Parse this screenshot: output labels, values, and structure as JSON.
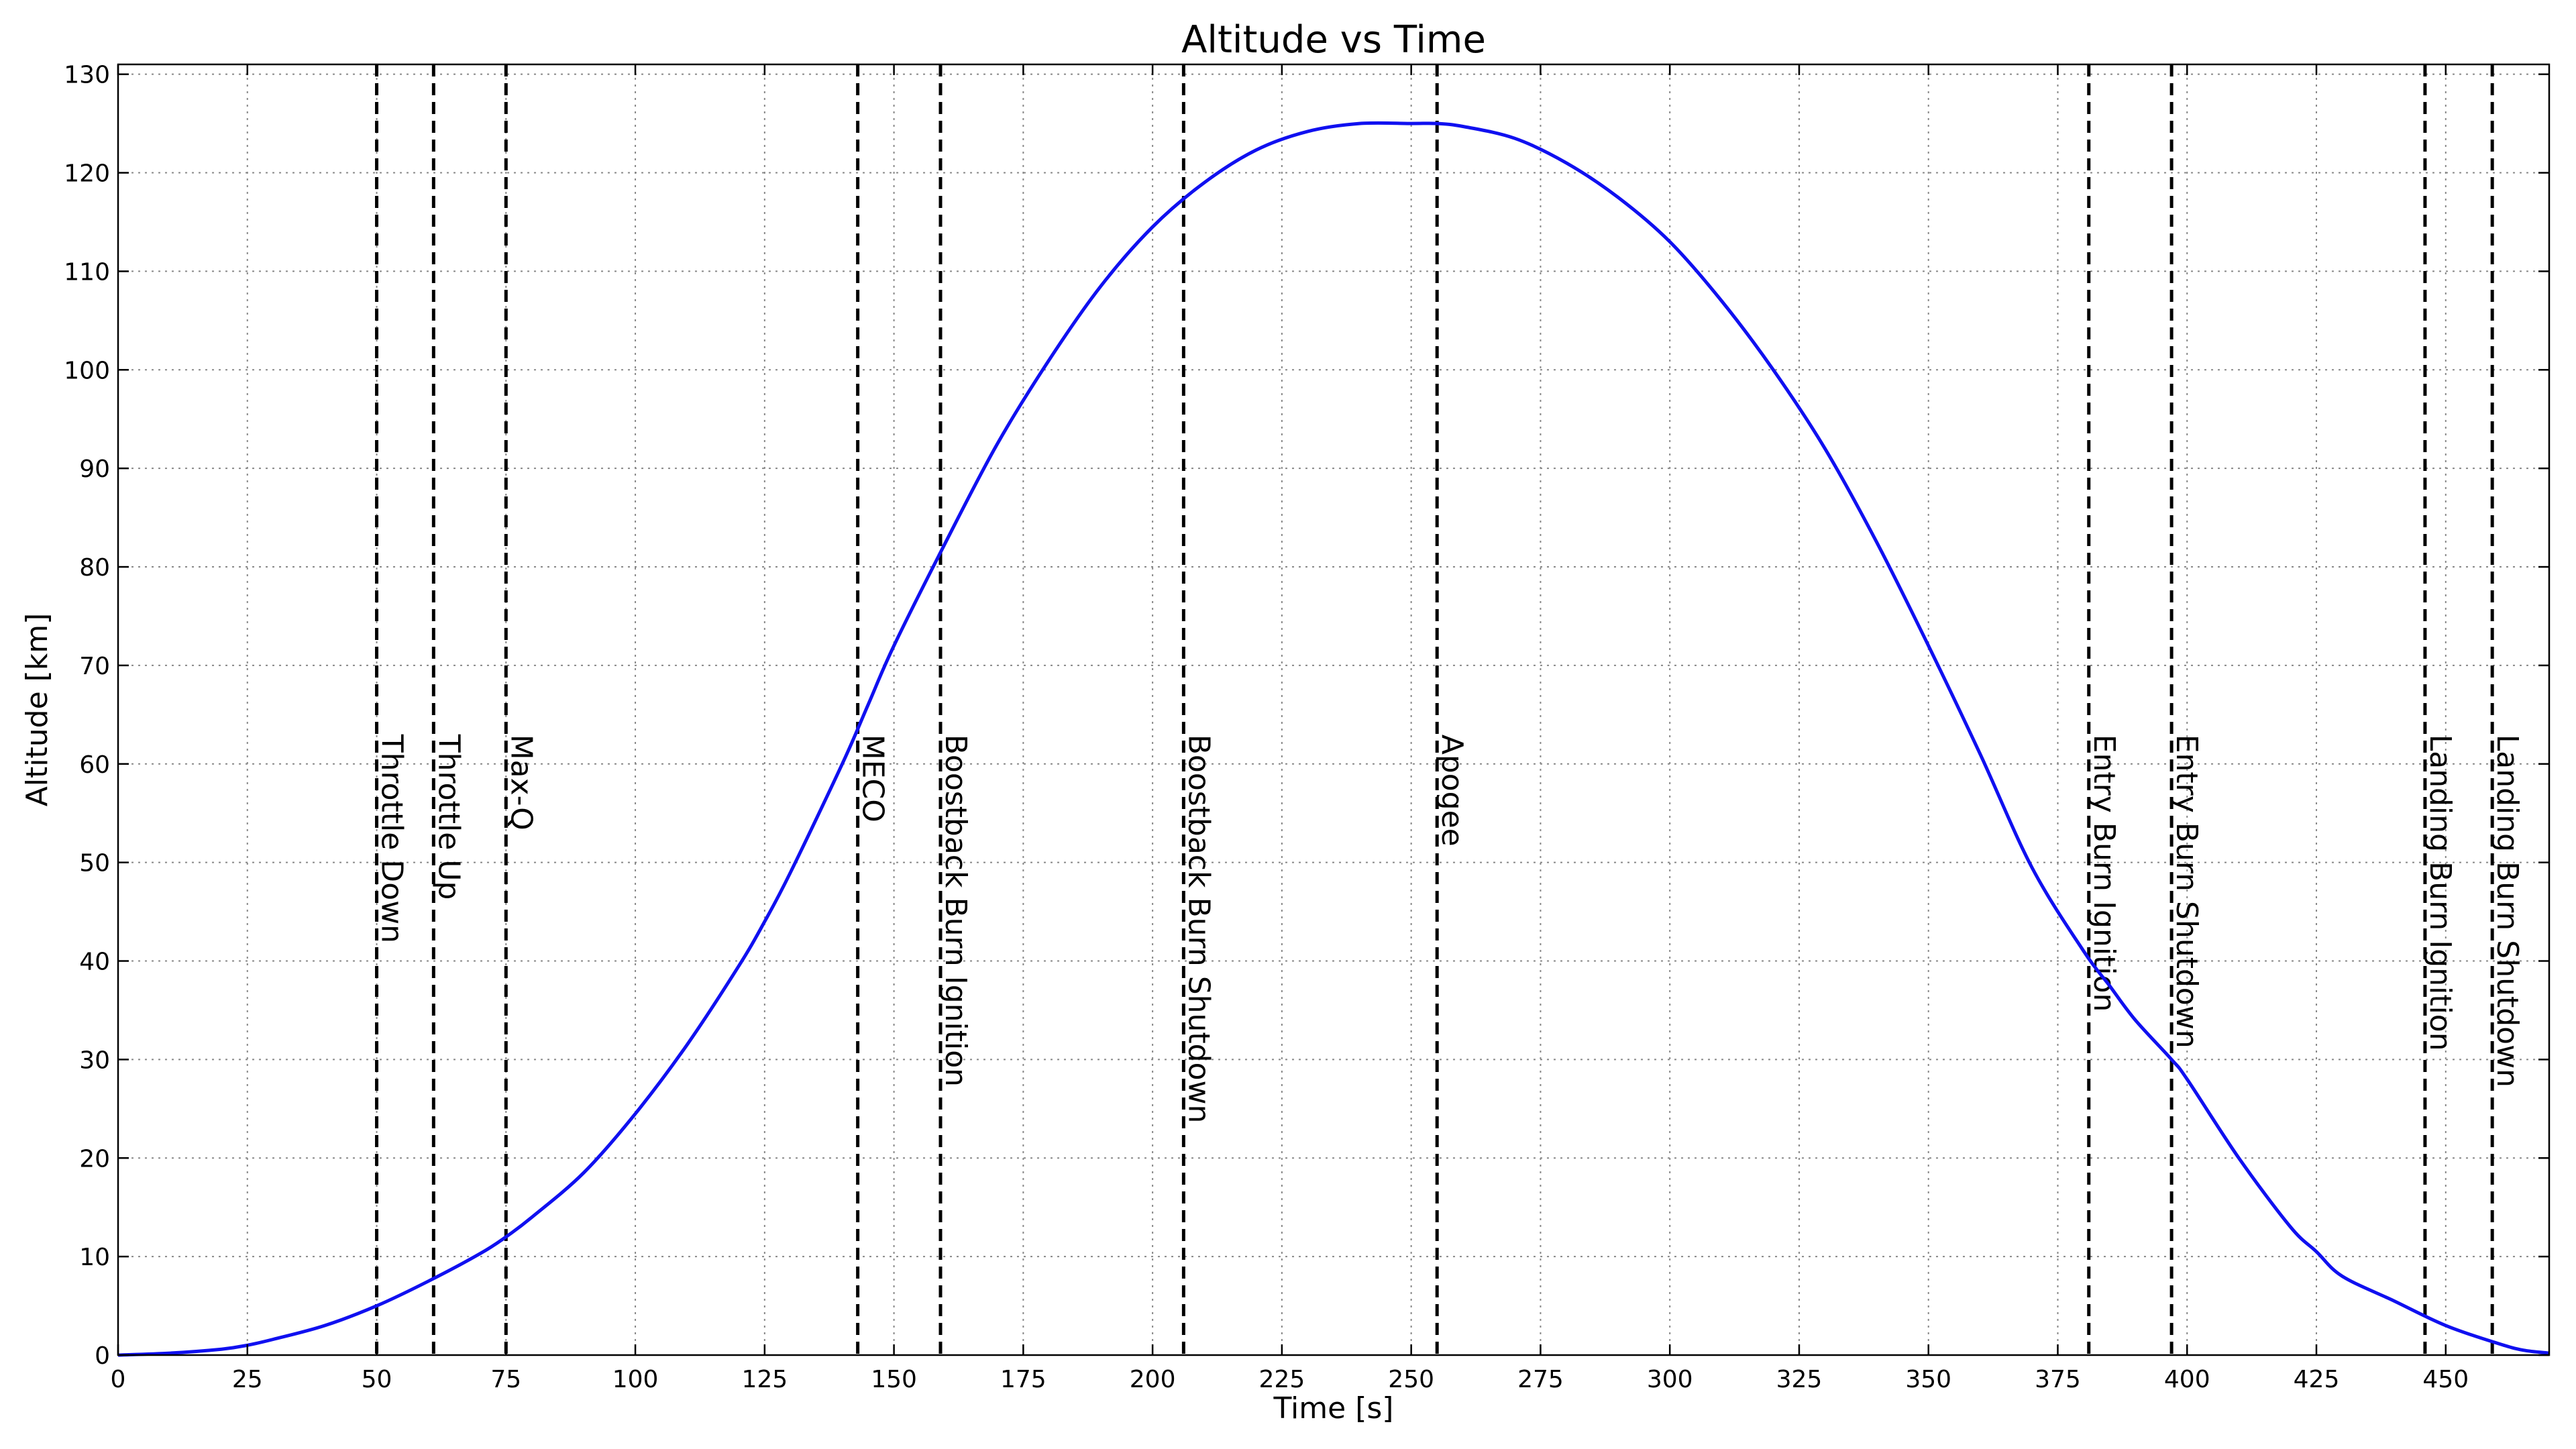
{
  "chart_data": {
    "type": "line",
    "title": "Altitude vs Time",
    "xlabel": "Time [s]",
    "ylabel": "Altitude [km]",
    "xlim": [
      0,
      470
    ],
    "ylim": [
      0,
      131
    ],
    "xticks": [
      0,
      25,
      50,
      75,
      100,
      125,
      150,
      175,
      200,
      225,
      250,
      275,
      300,
      325,
      350,
      375,
      400,
      425,
      450
    ],
    "yticks": [
      0,
      10,
      20,
      30,
      40,
      50,
      60,
      70,
      80,
      90,
      100,
      110,
      120,
      130
    ],
    "grid": true,
    "series": [
      {
        "color": "#1010f0",
        "x": [
          0,
          10,
          20,
          25,
          30,
          40,
          50,
          60,
          70,
          75,
          80,
          90,
          100,
          110,
          120,
          125,
          130,
          140,
          145,
          150,
          160,
          170,
          180,
          190,
          200,
          210,
          220,
          230,
          240,
          250,
          255,
          260,
          270,
          280,
          290,
          300,
          310,
          320,
          330,
          340,
          350,
          360,
          370,
          380,
          385,
          390,
          397,
          400,
          410,
          420,
          425,
          430,
          440,
          450,
          460,
          465,
          470
        ],
        "y": [
          0,
          0.2,
          0.6,
          1.0,
          1.6,
          3.0,
          5.0,
          7.5,
          10.3,
          12.0,
          14.0,
          18.5,
          24.5,
          31.5,
          39.5,
          44.0,
          49.0,
          60.0,
          66.0,
          72.0,
          82.5,
          92.5,
          101.0,
          108.5,
          114.5,
          119.0,
          122.3,
          124.2,
          125.0,
          125.0,
          125.0,
          124.7,
          123.5,
          121.0,
          117.5,
          113.0,
          107.0,
          100.0,
          92.0,
          82.5,
          72.0,
          61.0,
          49.5,
          41.0,
          37.5,
          34.0,
          30.0,
          28.0,
          20.0,
          13.0,
          10.5,
          8.0,
          5.5,
          3.0,
          1.2,
          0.5,
          0.2
        ]
      }
    ],
    "events": [
      {
        "x": 50,
        "label": "Throttle Down"
      },
      {
        "x": 61,
        "label": "Throttle Up"
      },
      {
        "x": 75,
        "label": "Max-Q"
      },
      {
        "x": 143,
        "label": "MECO"
      },
      {
        "x": 159,
        "label": "Boostback Burn Ignition"
      },
      {
        "x": 206,
        "label": "Boostback Burn Shutdown"
      },
      {
        "x": 255,
        "label": "Apogee"
      },
      {
        "x": 381,
        "label": "Entry Burn Ignition"
      },
      {
        "x": 397,
        "label": "Entry Burn Shutdown"
      },
      {
        "x": 446,
        "label": "Landing Burn Ignition"
      },
      {
        "x": 459,
        "label": "Landing Burn Shutdown"
      }
    ]
  }
}
